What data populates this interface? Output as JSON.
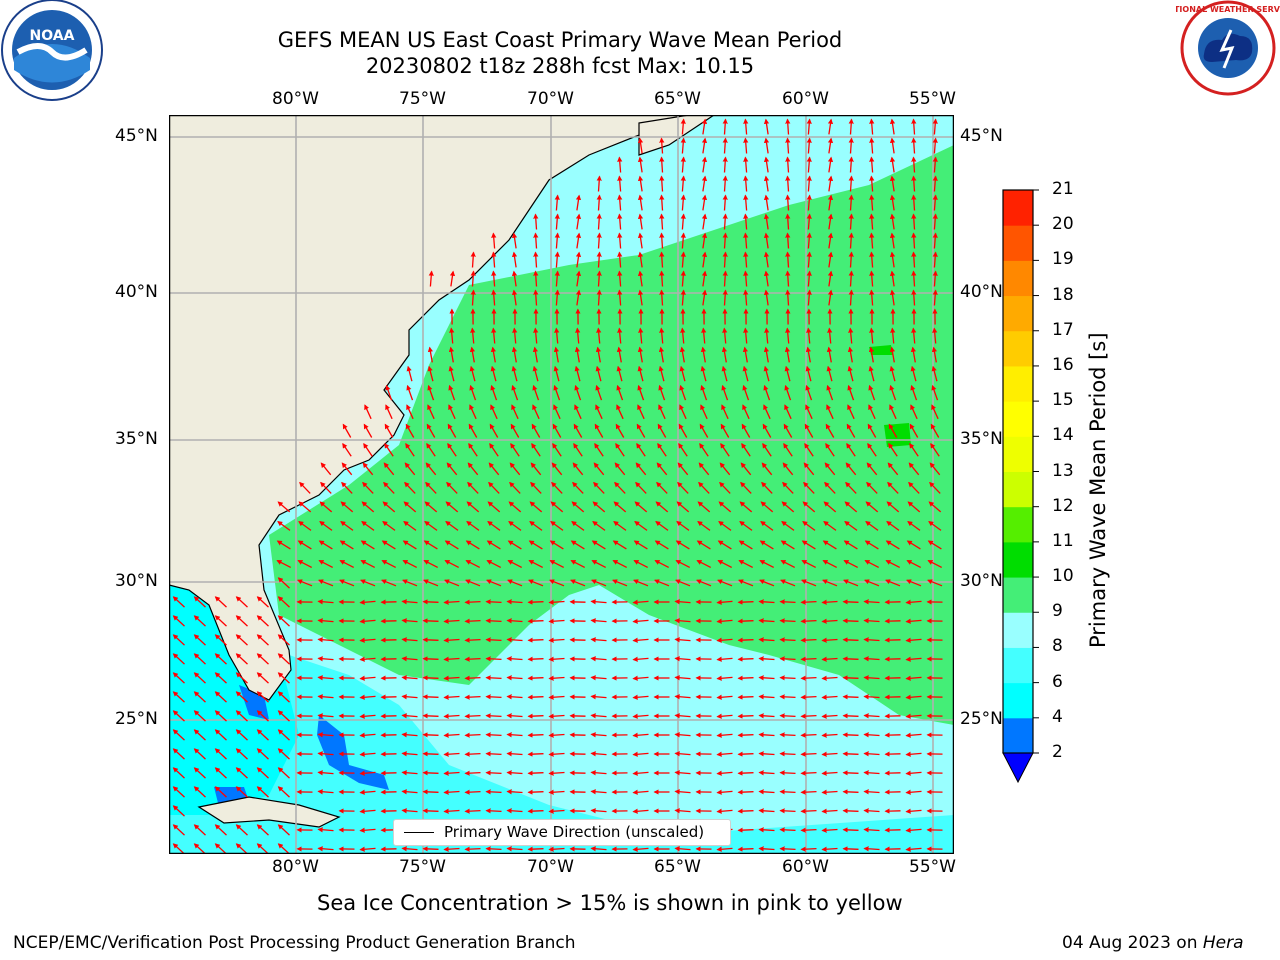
{
  "header": {
    "title_line1": "GEFS MEAN US East Coast Primary Wave Mean Period",
    "title_line2": "20230802 t18z 288h fcst   Max: 10.15"
  },
  "logos": {
    "left_text": "NOAA",
    "right_text": "NATIONAL WEATHER SERVICE"
  },
  "map": {
    "lon_labels": [
      "80°W",
      "75°W",
      "70°W",
      "65°W",
      "60°W",
      "55°W"
    ],
    "lat_labels": [
      "45°N",
      "40°N",
      "35°N",
      "30°N",
      "25°N"
    ],
    "lon_range": [
      -85,
      -54.5
    ],
    "lat_range": [
      20,
      46
    ],
    "legend_label": "Primary Wave Direction (unscaled)",
    "colors": {
      "land": "#efedde",
      "grid": "#b0b0b0",
      "arrow": "#ff0000",
      "coast": "#000000"
    }
  },
  "colorbar": {
    "label": "Primary Wave Mean Period [s]",
    "ticks": [
      "2",
      "4",
      "6",
      "8",
      "9",
      "10",
      "11",
      "12",
      "13",
      "14",
      "15",
      "16",
      "17",
      "18",
      "19",
      "20",
      "21"
    ],
    "colors": [
      "#0077ff",
      "#00ffff",
      "#44ffff",
      "#99ffff",
      "#44ee77",
      "#00dd00",
      "#55ee00",
      "#ccff00",
      "#eeff00",
      "#ffff00",
      "#ffee00",
      "#ffcc00",
      "#ffaa00",
      "#ff8800",
      "#ff5500",
      "#ff2200"
    ],
    "under_color": "#0000ff"
  },
  "footer": {
    "sea_ice_note": "Sea Ice Concentration > 15% is shown in pink to yellow",
    "branch": "NCEP/EMC/Verification Post Processing Product Generation Branch",
    "date": "04 Aug 2023 on",
    "machine": "Hera"
  }
}
